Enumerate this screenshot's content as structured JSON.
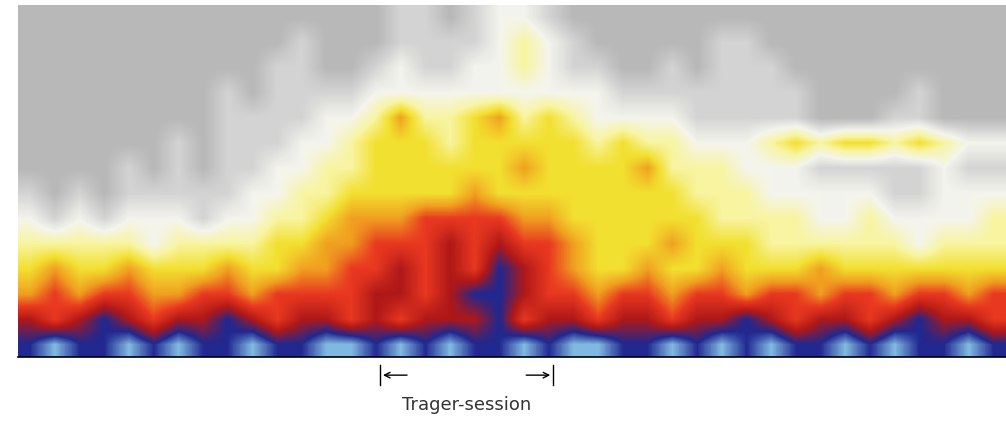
{
  "chart_data": {
    "type": "heatmap",
    "tick_labels": false,
    "color_range": [
      0,
      9
    ],
    "annotations": [
      {
        "text": "Trager-session",
        "x_start": 14.66,
        "x_end": 21.66
      }
    ],
    "cells": [
      [
        8,
        9,
        8,
        8,
        9,
        8,
        9,
        8,
        8,
        9,
        8,
        8,
        9,
        9,
        8,
        9,
        8,
        9,
        8,
        8,
        9,
        8,
        9,
        9,
        8,
        8,
        9,
        8,
        9,
        8,
        9,
        8,
        8,
        9,
        8,
        9,
        8,
        8,
        9,
        8
      ],
      [
        7,
        6,
        7,
        8,
        7,
        6,
        7,
        7,
        8,
        7,
        6,
        7,
        7,
        6,
        7,
        6,
        7,
        7,
        7,
        8,
        6,
        7,
        7,
        6,
        7,
        7,
        6,
        7,
        7,
        8,
        7,
        6,
        7,
        7,
        6,
        7,
        8,
        7,
        7,
        6
      ],
      [
        5,
        6,
        5,
        6,
        6,
        5,
        5,
        6,
        6,
        5,
        6,
        6,
        6,
        6,
        7,
        7,
        6,
        7,
        8,
        8,
        7,
        6,
        6,
        5,
        6,
        6,
        5,
        6,
        6,
        5,
        6,
        6,
        5,
        6,
        6,
        5,
        6,
        6,
        5,
        6
      ],
      [
        4,
        5,
        4,
        4,
        5,
        4,
        4,
        4,
        5,
        4,
        4,
        5,
        5,
        6,
        6,
        7,
        6,
        7,
        6,
        8,
        7,
        6,
        5,
        4,
        4,
        5,
        4,
        4,
        5,
        4,
        4,
        4,
        5,
        4,
        4,
        4,
        4,
        4,
        4,
        4
      ],
      [
        3,
        3,
        3,
        3,
        3,
        2,
        3,
        3,
        3,
        3,
        4,
        4,
        5,
        5,
        6,
        6,
        6,
        7,
        6,
        7,
        6,
        6,
        5,
        4,
        4,
        4,
        5,
        4,
        4,
        4,
        3,
        3,
        3,
        3,
        3,
        3,
        2,
        3,
        3,
        3
      ],
      [
        2,
        1,
        2,
        1,
        2,
        2,
        2,
        1,
        2,
        2,
        3,
        3,
        4,
        5,
        5,
        5,
        6,
        6,
        6,
        6,
        5,
        5,
        4,
        4,
        4,
        4,
        4,
        4,
        3,
        3,
        3,
        3,
        2,
        2,
        3,
        2,
        2,
        2,
        2,
        3
      ],
      [
        1,
        0,
        1,
        0,
        1,
        1,
        1,
        1,
        1,
        2,
        2,
        3,
        3,
        4,
        4,
        4,
        4,
        4,
        5,
        4,
        4,
        4,
        4,
        4,
        4,
        4,
        4,
        3,
        3,
        3,
        2,
        2,
        2,
        2,
        2,
        1,
        1,
        2,
        2,
        2
      ],
      [
        0,
        0,
        0,
        0,
        1,
        0,
        1,
        0,
        1,
        1,
        2,
        2,
        3,
        3,
        4,
        4,
        4,
        4,
        4,
        4,
        5,
        4,
        4,
        4,
        4,
        5,
        3,
        3,
        3,
        2,
        2,
        2,
        1,
        1,
        1,
        1,
        1,
        2,
        1,
        1
      ],
      [
        0,
        0,
        0,
        0,
        0,
        0,
        1,
        0,
        1,
        1,
        1,
        2,
        2,
        3,
        4,
        4,
        4,
        3,
        4,
        4,
        4,
        4,
        4,
        3,
        4,
        3,
        3,
        2,
        2,
        2,
        3,
        4,
        3,
        4,
        4,
        3,
        4,
        3,
        2,
        2
      ],
      [
        0,
        0,
        0,
        0,
        0,
        0,
        0,
        0,
        1,
        1,
        1,
        1,
        2,
        2,
        3,
        5,
        3,
        3,
        4,
        5,
        3,
        4,
        3,
        2,
        2,
        2,
        2,
        1,
        1,
        1,
        1,
        1,
        0,
        0,
        0,
        1,
        1,
        0,
        0,
        0
      ],
      [
        0,
        0,
        0,
        0,
        0,
        0,
        0,
        0,
        1,
        0,
        1,
        1,
        1,
        1,
        2,
        2,
        2,
        2,
        2,
        2,
        2,
        2,
        2,
        2,
        1,
        1,
        1,
        1,
        1,
        1,
        1,
        1,
        0,
        0,
        0,
        0,
        1,
        0,
        0,
        0
      ],
      [
        0,
        0,
        0,
        0,
        0,
        0,
        0,
        0,
        0,
        0,
        1,
        1,
        0,
        0,
        1,
        2,
        1,
        1,
        2,
        2,
        3,
        2,
        1,
        1,
        0,
        0,
        1,
        0,
        1,
        1,
        1,
        0,
        0,
        0,
        0,
        0,
        0,
        0,
        0,
        0
      ],
      [
        0,
        0,
        0,
        0,
        0,
        0,
        0,
        0,
        0,
        0,
        0,
        1,
        0,
        0,
        0,
        1,
        1,
        1,
        1,
        2,
        3,
        2,
        1,
        0,
        0,
        0,
        0,
        0,
        1,
        1,
        0,
        0,
        0,
        0,
        0,
        0,
        0,
        0,
        0,
        0
      ],
      [
        0,
        0,
        0,
        0,
        0,
        0,
        0,
        0,
        0,
        0,
        0,
        0,
        0,
        0,
        0,
        1,
        1,
        0,
        1,
        2,
        2,
        1,
        0,
        0,
        0,
        0,
        0,
        0,
        0,
        0,
        0,
        0,
        0,
        0,
        0,
        0,
        0,
        0,
        0,
        0
      ]
    ]
  }
}
